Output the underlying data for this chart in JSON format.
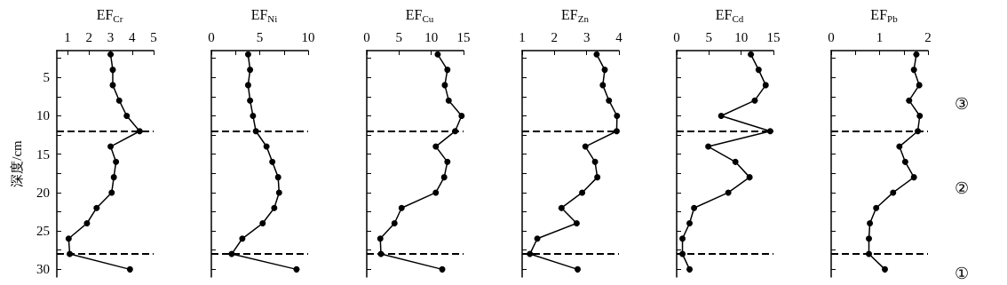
{
  "chart_data": [
    {
      "type": "line",
      "orientation": "horizontal",
      "title": "EF$_{Cr}$",
      "ylabel": "深度/cm",
      "marker": "circle",
      "line_style": "solid",
      "color": "#000000",
      "grid": false,
      "x": [
        2,
        4,
        6,
        8,
        10,
        12,
        14,
        16,
        18,
        20,
        22,
        24,
        26,
        28,
        30
      ],
      "values": [
        3.0,
        3.1,
        3.1,
        3.4,
        3.75,
        4.35,
        3.0,
        3.25,
        3.15,
        3.05,
        2.35,
        1.9,
        1.05,
        1.1,
        3.9
      ],
      "xlim": [
        0.5,
        5
      ],
      "xticks": [
        1,
        2,
        3,
        4,
        5
      ],
      "ylim": [
        31,
        1.5
      ],
      "yticks": [
        {
          "value": 2.5,
          "label": null
        },
        5,
        {
          "value": 7.5,
          "label": null
        },
        10,
        {
          "value": 12.5,
          "label": null
        },
        15,
        {
          "value": 17.5,
          "label": null
        },
        20,
        {
          "value": 22.5,
          "label": null
        },
        25,
        {
          "value": 27.5,
          "label": null
        },
        30
      ],
      "ref_lines": [
        {
          "axis": "y",
          "value": 12,
          "line_style": "dashed"
        },
        {
          "axis": "y",
          "value": 28,
          "line_style": "dashed"
        }
      ]
    },
    {
      "type": "line",
      "orientation": "horizontal",
      "title": "EF$_{Ni}$",
      "marker": "circle",
      "line_style": "solid",
      "color": "#000000",
      "grid": false,
      "tick_labels": "x",
      "x": [
        2,
        4,
        6,
        8,
        10,
        12,
        14,
        16,
        18,
        20,
        22,
        24,
        26,
        28,
        30
      ],
      "values": [
        3.8,
        4.0,
        3.8,
        4.0,
        4.3,
        4.6,
        5.7,
        6.3,
        6.9,
        7.0,
        6.5,
        5.3,
        3.2,
        2.1,
        8.8
      ],
      "xlim": [
        0,
        10
      ],
      "xticks": [
        0,
        {
          "value": 2.5,
          "label": null
        },
        5,
        {
          "value": 7.5,
          "label": null
        },
        10
      ],
      "ylim": [
        31,
        1.5
      ],
      "yticks": [
        {
          "value": 2.5,
          "label": null
        },
        5,
        {
          "value": 7.5,
          "label": null
        },
        10,
        {
          "value": 12.5,
          "label": null
        },
        15,
        {
          "value": 17.5,
          "label": null
        },
        20,
        {
          "value": 22.5,
          "label": null
        },
        25,
        {
          "value": 27.5,
          "label": null
        },
        30
      ],
      "ref_lines": [
        {
          "axis": "y",
          "value": 12,
          "line_style": "dashed"
        },
        {
          "axis": "y",
          "value": 28,
          "line_style": "dashed"
        }
      ]
    },
    {
      "type": "line",
      "orientation": "horizontal",
      "title": "EF$_{Cu}$",
      "marker": "circle",
      "line_style": "solid",
      "color": "#000000",
      "grid": false,
      "tick_labels": "x",
      "x": [
        2,
        4,
        6,
        8,
        10,
        12,
        14,
        16,
        18,
        20,
        22,
        24,
        26,
        28,
        30
      ],
      "values": [
        11.0,
        12.5,
        12.1,
        12.7,
        14.7,
        13.7,
        10.7,
        12.5,
        12.0,
        10.7,
        5.4,
        4.3,
        2.1,
        2.2,
        11.7
      ],
      "xlim": [
        0,
        15
      ],
      "xticks": [
        0,
        5,
        10,
        15
      ],
      "ylim": [
        31,
        1.5
      ],
      "yticks": [
        {
          "value": 2.5,
          "label": null
        },
        5,
        {
          "value": 7.5,
          "label": null
        },
        10,
        {
          "value": 12.5,
          "label": null
        },
        15,
        {
          "value": 17.5,
          "label": null
        },
        20,
        {
          "value": 22.5,
          "label": null
        },
        25,
        {
          "value": 27.5,
          "label": null
        },
        30
      ],
      "ref_lines": [
        {
          "axis": "y",
          "value": 12,
          "line_style": "dashed"
        },
        {
          "axis": "y",
          "value": 28,
          "line_style": "dashed"
        }
      ]
    },
    {
      "type": "line",
      "orientation": "horizontal",
      "title": "EF$_{Zn}$",
      "marker": "circle",
      "line_style": "solid",
      "color": "#000000",
      "grid": false,
      "tick_labels": "x",
      "x": [
        2,
        4,
        6,
        8,
        10,
        12,
        14,
        16,
        18,
        20,
        22,
        24,
        26,
        28,
        30
      ],
      "values": [
        3.31,
        3.56,
        3.5,
        3.69,
        3.94,
        3.93,
        2.96,
        3.26,
        3.33,
        2.86,
        2.22,
        2.69,
        1.47,
        1.24,
        2.72
      ],
      "xlim": [
        1,
        4
      ],
      "xticks": [
        1,
        2,
        3,
        4
      ],
      "ylim": [
        31,
        1.5
      ],
      "yticks": [
        {
          "value": 2.5,
          "label": null
        },
        5,
        {
          "value": 7.5,
          "label": null
        },
        10,
        {
          "value": 12.5,
          "label": null
        },
        15,
        {
          "value": 17.5,
          "label": null
        },
        20,
        {
          "value": 22.5,
          "label": null
        },
        25,
        {
          "value": 27.5,
          "label": null
        },
        30
      ],
      "ref_lines": [
        {
          "axis": "y",
          "value": 12,
          "line_style": "dashed"
        },
        {
          "axis": "y",
          "value": 28,
          "line_style": "dashed"
        }
      ]
    },
    {
      "type": "line",
      "orientation": "horizontal",
      "title": "EF$_{Cd}$",
      "marker": "circle",
      "line_style": "solid",
      "color": "#000000",
      "grid": false,
      "tick_labels": "x",
      "x": [
        2,
        4,
        6,
        8,
        10,
        12,
        14,
        16,
        18,
        20,
        22,
        24,
        26,
        28,
        30
      ],
      "values": [
        11.5,
        12.7,
        13.8,
        12.1,
        6.9,
        14.5,
        4.9,
        9.1,
        11.3,
        8.0,
        2.7,
        2.0,
        0.9,
        0.9,
        2.0
      ],
      "xlim": [
        0,
        15
      ],
      "xticks": [
        0,
        5,
        10,
        15
      ],
      "ylim": [
        31,
        1.5
      ],
      "yticks": [
        {
          "value": 2.5,
          "label": null
        },
        5,
        {
          "value": 7.5,
          "label": null
        },
        10,
        {
          "value": 12.5,
          "label": null
        },
        15,
        {
          "value": 17.5,
          "label": null
        },
        20,
        {
          "value": 22.5,
          "label": null
        },
        25,
        {
          "value": 27.5,
          "label": null
        },
        30
      ],
      "ref_lines": [
        {
          "axis": "y",
          "value": 12,
          "line_style": "dashed"
        },
        {
          "axis": "y",
          "value": 28,
          "line_style": "dashed"
        }
      ]
    },
    {
      "type": "line",
      "orientation": "horizontal",
      "title": "EF$_{Pb}$",
      "marker": "circle",
      "line_style": "solid",
      "color": "#000000",
      "grid": false,
      "tick_labels": "x",
      "x": [
        2,
        4,
        6,
        8,
        10,
        12,
        14,
        16,
        18,
        20,
        22,
        24,
        26,
        28,
        30
      ],
      "values": [
        1.76,
        1.71,
        1.82,
        1.61,
        1.83,
        1.79,
        1.41,
        1.53,
        1.71,
        1.28,
        0.93,
        0.8,
        0.78,
        0.78,
        1.11
      ],
      "xlim": [
        0,
        2
      ],
      "xticks": [
        0,
        {
          "value": 0.5,
          "label": null
        },
        1,
        {
          "value": 1.5,
          "label": null
        },
        2
      ],
      "ylim": [
        31,
        1.5
      ],
      "yticks": [
        {
          "value": 2.5,
          "label": null
        },
        5,
        {
          "value": 7.5,
          "label": null
        },
        10,
        {
          "value": 12.5,
          "label": null
        },
        15,
        {
          "value": 17.5,
          "label": null
        },
        20,
        {
          "value": 22.5,
          "label": null
        },
        25,
        {
          "value": 27.5,
          "label": null
        },
        30
      ],
      "ref_lines": [
        {
          "axis": "y",
          "value": 12,
          "line_style": "dashed"
        },
        {
          "axis": "y",
          "value": 28,
          "line_style": "dashed"
        }
      ],
      "annotations": [
        "③",
        "②",
        "①"
      ]
    }
  ]
}
